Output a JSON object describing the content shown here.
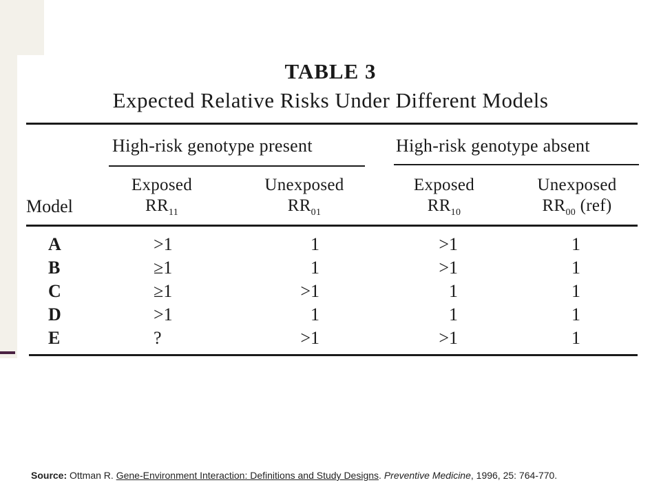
{
  "table": {
    "title": "TABLE 3",
    "subtitle": "Expected Relative Risks Under Different Models",
    "group_present": "High-risk genotype present",
    "group_absent": "High-risk genotype absent",
    "col_model": "Model",
    "col1_line1": "Exposed",
    "col1_rr": "RR",
    "col1_sub": "11",
    "col2_line1": "Unexposed",
    "col2_rr": "RR",
    "col2_sub": "01",
    "col3_line1": "Exposed",
    "col3_rr": "RR",
    "col3_sub": "10",
    "col4_line1": "Unexposed",
    "col4_rr": "RR",
    "col4_sub": "00",
    "col4_suffix": "(ref)",
    "rows": [
      {
        "model": "A",
        "c1": ">1",
        "c2": "1",
        "c3": ">1",
        "c4": "1"
      },
      {
        "model": "B",
        "c1": "≥1",
        "c2": "1",
        "c3": ">1",
        "c4": "1"
      },
      {
        "model": "C",
        "c1": "≥1",
        "c2": ">1",
        "c3": "1",
        "c4": "1"
      },
      {
        "model": "D",
        "c1": ">1",
        "c2": "1",
        "c3": "1",
        "c4": "1"
      },
      {
        "model": "E",
        "c1": "?",
        "c2": ">1",
        "c3": ">1",
        "c4": "1"
      }
    ]
  },
  "source": {
    "label": "Source:",
    "author": "Ottman R.",
    "title": "Gene-Environment Interaction: Definitions and Study Designs",
    "journal": "Preventive Medicine",
    "details": ", 1996, 25: 764-770."
  }
}
